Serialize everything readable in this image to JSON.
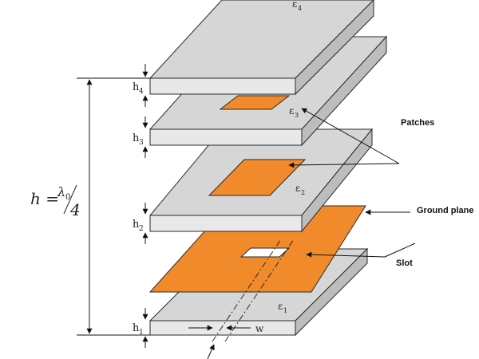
{
  "colors": {
    "layer_top": "#d6d6d6",
    "layer_front": "#e8e8e8",
    "layer_side": "#bdbdbd",
    "copper": "#f08a2a",
    "outline": "#2a2a2a"
  },
  "formula": {
    "lhs": "h =",
    "numerator": "λ",
    "numerator_sub": "0",
    "denominator": "4"
  },
  "heights": [
    {
      "main": "h",
      "sub": "4"
    },
    {
      "main": "h",
      "sub": "3"
    },
    {
      "main": "h",
      "sub": "2"
    },
    {
      "main": "h",
      "sub": "1"
    }
  ],
  "permittivities": [
    {
      "main": "ε",
      "sub": "4"
    },
    {
      "main": "ε",
      "sub": "3"
    },
    {
      "main": "ε",
      "sub": "2"
    },
    {
      "main": "ε",
      "sub": "1"
    }
  ],
  "labels": {
    "patches": "Patches",
    "ground_plane": "Ground plane",
    "slot": "Slot",
    "width": "w"
  }
}
